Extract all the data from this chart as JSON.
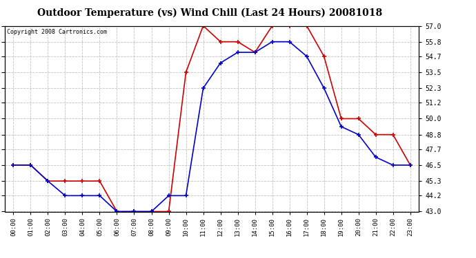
{
  "title": "Outdoor Temperature (vs) Wind Chill (Last 24 Hours) 20081018",
  "copyright": "Copyright 2008 Cartronics.com",
  "x_labels": [
    "00:00",
    "01:00",
    "02:00",
    "03:00",
    "04:00",
    "05:00",
    "06:00",
    "07:00",
    "08:00",
    "09:00",
    "10:00",
    "11:00",
    "12:00",
    "13:00",
    "14:00",
    "15:00",
    "16:00",
    "17:00",
    "18:00",
    "19:00",
    "20:00",
    "21:00",
    "22:00",
    "23:00"
  ],
  "temp_data": [
    46.5,
    46.5,
    45.3,
    45.3,
    45.3,
    45.3,
    43.0,
    43.0,
    43.0,
    43.0,
    53.5,
    57.0,
    55.8,
    55.8,
    55.0,
    57.0,
    57.0,
    57.0,
    54.7,
    50.0,
    50.0,
    48.8,
    48.8,
    46.5
  ],
  "windchill_data": [
    46.5,
    46.5,
    45.3,
    44.2,
    44.2,
    44.2,
    43.0,
    43.0,
    43.0,
    44.2,
    44.2,
    52.3,
    54.2,
    55.0,
    55.0,
    55.8,
    55.8,
    54.7,
    52.3,
    49.4,
    48.8,
    47.1,
    46.5,
    46.5
  ],
  "temp_color": "#cc0000",
  "windchill_color": "#0000cc",
  "bg_color": "#ffffff",
  "plot_bg_color": "#ffffff",
  "grid_color": "#bbbbbb",
  "y_ticks": [
    43.0,
    44.2,
    45.3,
    46.5,
    47.7,
    48.8,
    50.0,
    51.2,
    52.3,
    53.5,
    54.7,
    55.8,
    57.0
  ],
  "y_min": 43.0,
  "y_max": 57.0,
  "marker": "+",
  "marker_size": 5,
  "line_width": 1.2
}
